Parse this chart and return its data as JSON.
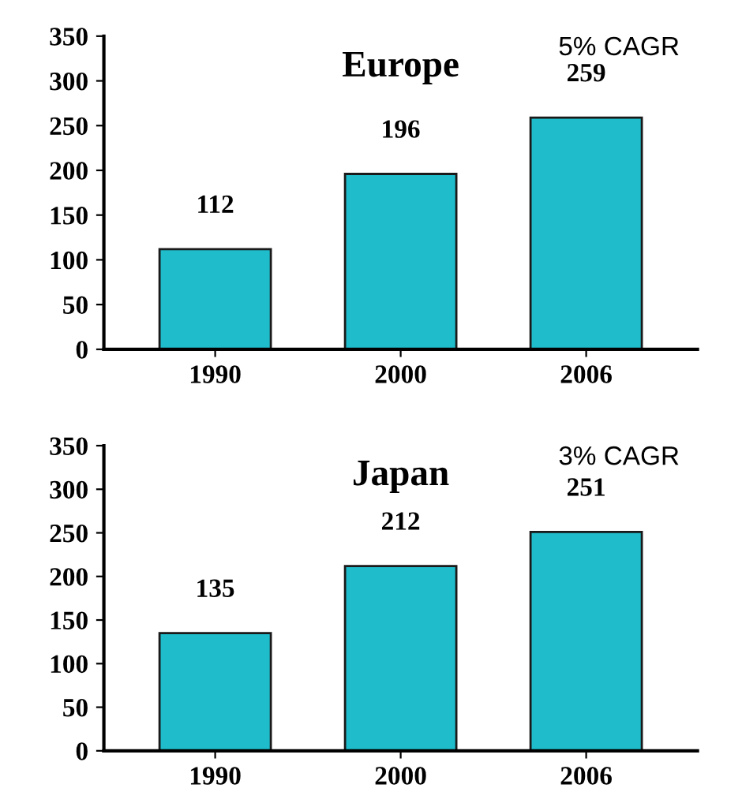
{
  "chart_data": [
    {
      "type": "bar",
      "title": "Europe",
      "categories": [
        "1990",
        "2000",
        "2006"
      ],
      "values": [
        112,
        196,
        259
      ],
      "color": "#1fbccb",
      "ylim": [
        0,
        350
      ],
      "yticks": [
        0,
        50,
        100,
        150,
        200,
        250,
        300,
        350
      ],
      "data_labels": true,
      "grid": false,
      "legend": false,
      "annotations": [
        "5% CAGR"
      ]
    },
    {
      "type": "bar",
      "title": "Japan",
      "categories": [
        "1990",
        "2000",
        "2006"
      ],
      "values": [
        135,
        212,
        251
      ],
      "color": "#1fbccb",
      "ylim": [
        0,
        350
      ],
      "yticks": [
        0,
        50,
        100,
        150,
        200,
        250,
        300,
        350
      ],
      "data_labels": true,
      "grid": false,
      "legend": false,
      "annotations": [
        "3% CAGR"
      ]
    }
  ]
}
